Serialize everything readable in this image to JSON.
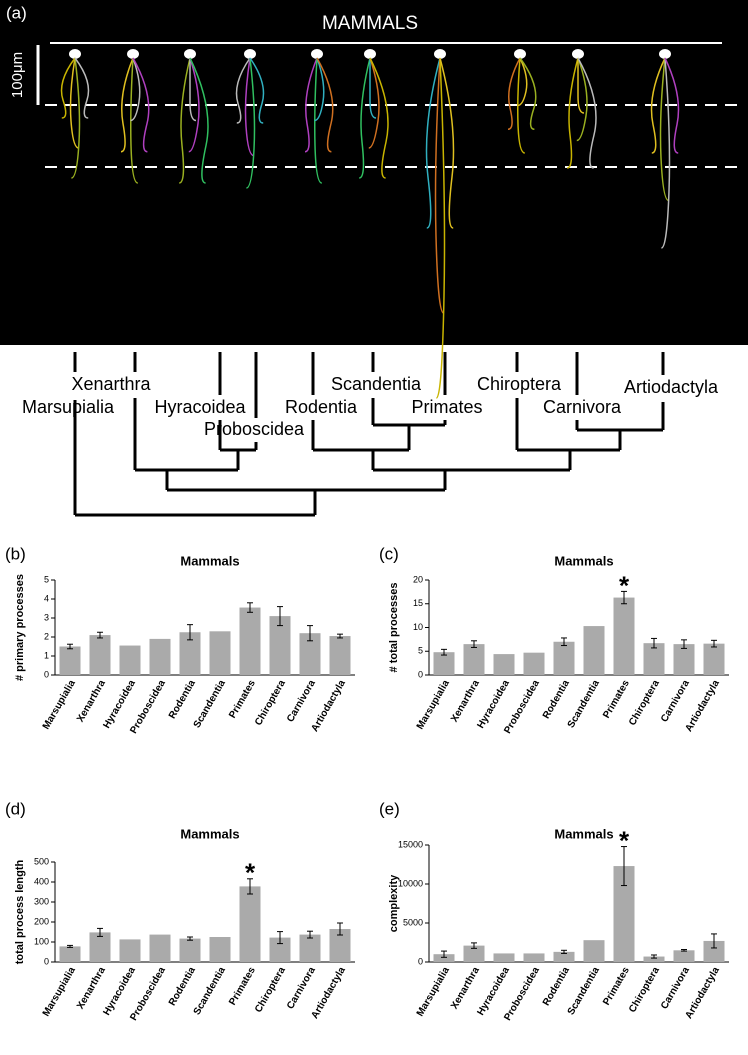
{
  "panel_a": {
    "label": "(a)",
    "title": "MAMMALS",
    "scale_label": "100μm"
  },
  "tree": {
    "taxa": [
      "Marsupialia",
      "Xenarthra",
      "Hyracoidea",
      "Proboscidea",
      "Rodentia",
      "Scandentia",
      "Primates",
      "Chiroptera",
      "Carnivora",
      "Artiodactyla"
    ]
  },
  "chart_data": [
    {
      "type": "bar",
      "panel_label": "(b)",
      "title": "Mammals",
      "y_label": "# primary processes",
      "categories": [
        "Marsupialia",
        "Xenarthra",
        "Hyracoidea",
        "Proboscidea",
        "Rodentia",
        "Scandentia",
        "Primates",
        "Chiroptera",
        "Carnivora",
        "Artiodactyla"
      ],
      "values": [
        1.5,
        2.1,
        1.55,
        1.9,
        2.25,
        2.3,
        3.55,
        3.1,
        2.2,
        2.05
      ],
      "errors": [
        0.12,
        0.15,
        null,
        null,
        0.4,
        null,
        0.25,
        0.5,
        0.4,
        0.1
      ],
      "color": "#aaaaaa",
      "ylim": [
        0,
        5
      ],
      "yticks": [
        0,
        1,
        2,
        3,
        4,
        5
      ]
    },
    {
      "type": "bar",
      "panel_label": "(c)",
      "title": "Mammals",
      "y_label": "# total processes",
      "categories": [
        "Marsupialia",
        "Xenarthra",
        "Hyracoidea",
        "Proboscidea",
        "Rodentia",
        "Scandentia",
        "Primates",
        "Chiroptera",
        "Carnivora",
        "Artiodactyla"
      ],
      "values": [
        4.8,
        6.5,
        4.4,
        4.7,
        7.0,
        10.3,
        16.3,
        6.7,
        6.5,
        6.6
      ],
      "errors": [
        0.6,
        0.7,
        null,
        null,
        0.8,
        null,
        1.3,
        1.0,
        0.9,
        0.7
      ],
      "color": "#aaaaaa",
      "ylim": [
        0,
        20
      ],
      "yticks": [
        0,
        5,
        10,
        15,
        20
      ],
      "annotation": {
        "text": "*",
        "category": "Primates"
      }
    },
    {
      "type": "bar",
      "panel_label": "(d)",
      "title": "Mammals",
      "y_label": "total process length",
      "categories": [
        "Marsupialia",
        "Xenarthra",
        "Hyracoidea",
        "Proboscidea",
        "Rodentia",
        "Scandentia",
        "Primates",
        "Chiroptera",
        "Carnivora",
        "Artiodactyla"
      ],
      "values": [
        78,
        148,
        113,
        137,
        117,
        125,
        378,
        122,
        137,
        165
      ],
      "errors": [
        5,
        20,
        null,
        null,
        8,
        null,
        38,
        30,
        17,
        30
      ],
      "color": "#aaaaaa",
      "ylim": [
        0,
        500
      ],
      "yticks": [
        0,
        100,
        200,
        300,
        400,
        500
      ],
      "annotation": {
        "text": "*",
        "category": "Primates"
      }
    },
    {
      "type": "bar",
      "panel_label": "(e)",
      "title": "Mammals",
      "y_label": "complexity",
      "categories": [
        "Marsupialia",
        "Xenarthra",
        "Hyracoidea",
        "Proboscidea",
        "Rodentia",
        "Scandentia",
        "Primates",
        "Chiroptera",
        "Carnivora",
        "Artiodactyla"
      ],
      "values": [
        1000,
        2100,
        1100,
        1100,
        1300,
        2800,
        12300,
        700,
        1500,
        2700
      ],
      "errors": [
        400,
        350,
        null,
        null,
        200,
        null,
        2500,
        200,
        100,
        900
      ],
      "color": "#aaaaaa",
      "ylim": [
        0,
        15000
      ],
      "yticks": [
        0,
        5000,
        10000,
        15000
      ],
      "annotation": {
        "text": "*",
        "category": "Primates"
      }
    }
  ]
}
